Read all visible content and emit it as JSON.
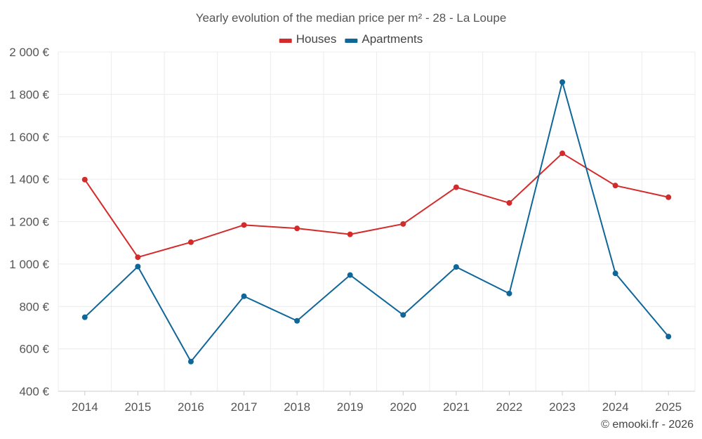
{
  "chart_data": {
    "type": "line",
    "title": "Yearly evolution of the median price per m² - 28 - La Loupe",
    "categories": [
      "2014",
      "2015",
      "2016",
      "2017",
      "2018",
      "2019",
      "2020",
      "2021",
      "2022",
      "2023",
      "2024",
      "2025"
    ],
    "series": [
      {
        "name": "Houses",
        "color": "#d42a2a",
        "values": [
          1398,
          1032,
          1103,
          1184,
          1168,
          1140,
          1189,
          1362,
          1288,
          1522,
          1370,
          1315
        ]
      },
      {
        "name": "Apartments",
        "color": "#0e6699",
        "values": [
          749,
          988,
          540,
          848,
          732,
          948,
          760,
          986,
          861,
          1858,
          956,
          658
        ]
      }
    ],
    "ylim": [
      400,
      2000
    ],
    "yticks": [
      400,
      600,
      800,
      1000,
      1200,
      1400,
      1600,
      1800,
      2000
    ],
    "ytick_labels": [
      "400 €",
      "600 €",
      "800 €",
      "1 000 €",
      "1 200 €",
      "1 400 €",
      "1 600 €",
      "1 800 €",
      "2 000 €"
    ],
    "xlabel": "",
    "ylabel": "",
    "grid": true,
    "legend": "top-center"
  },
  "credit": "© emooki.fr - 2026"
}
